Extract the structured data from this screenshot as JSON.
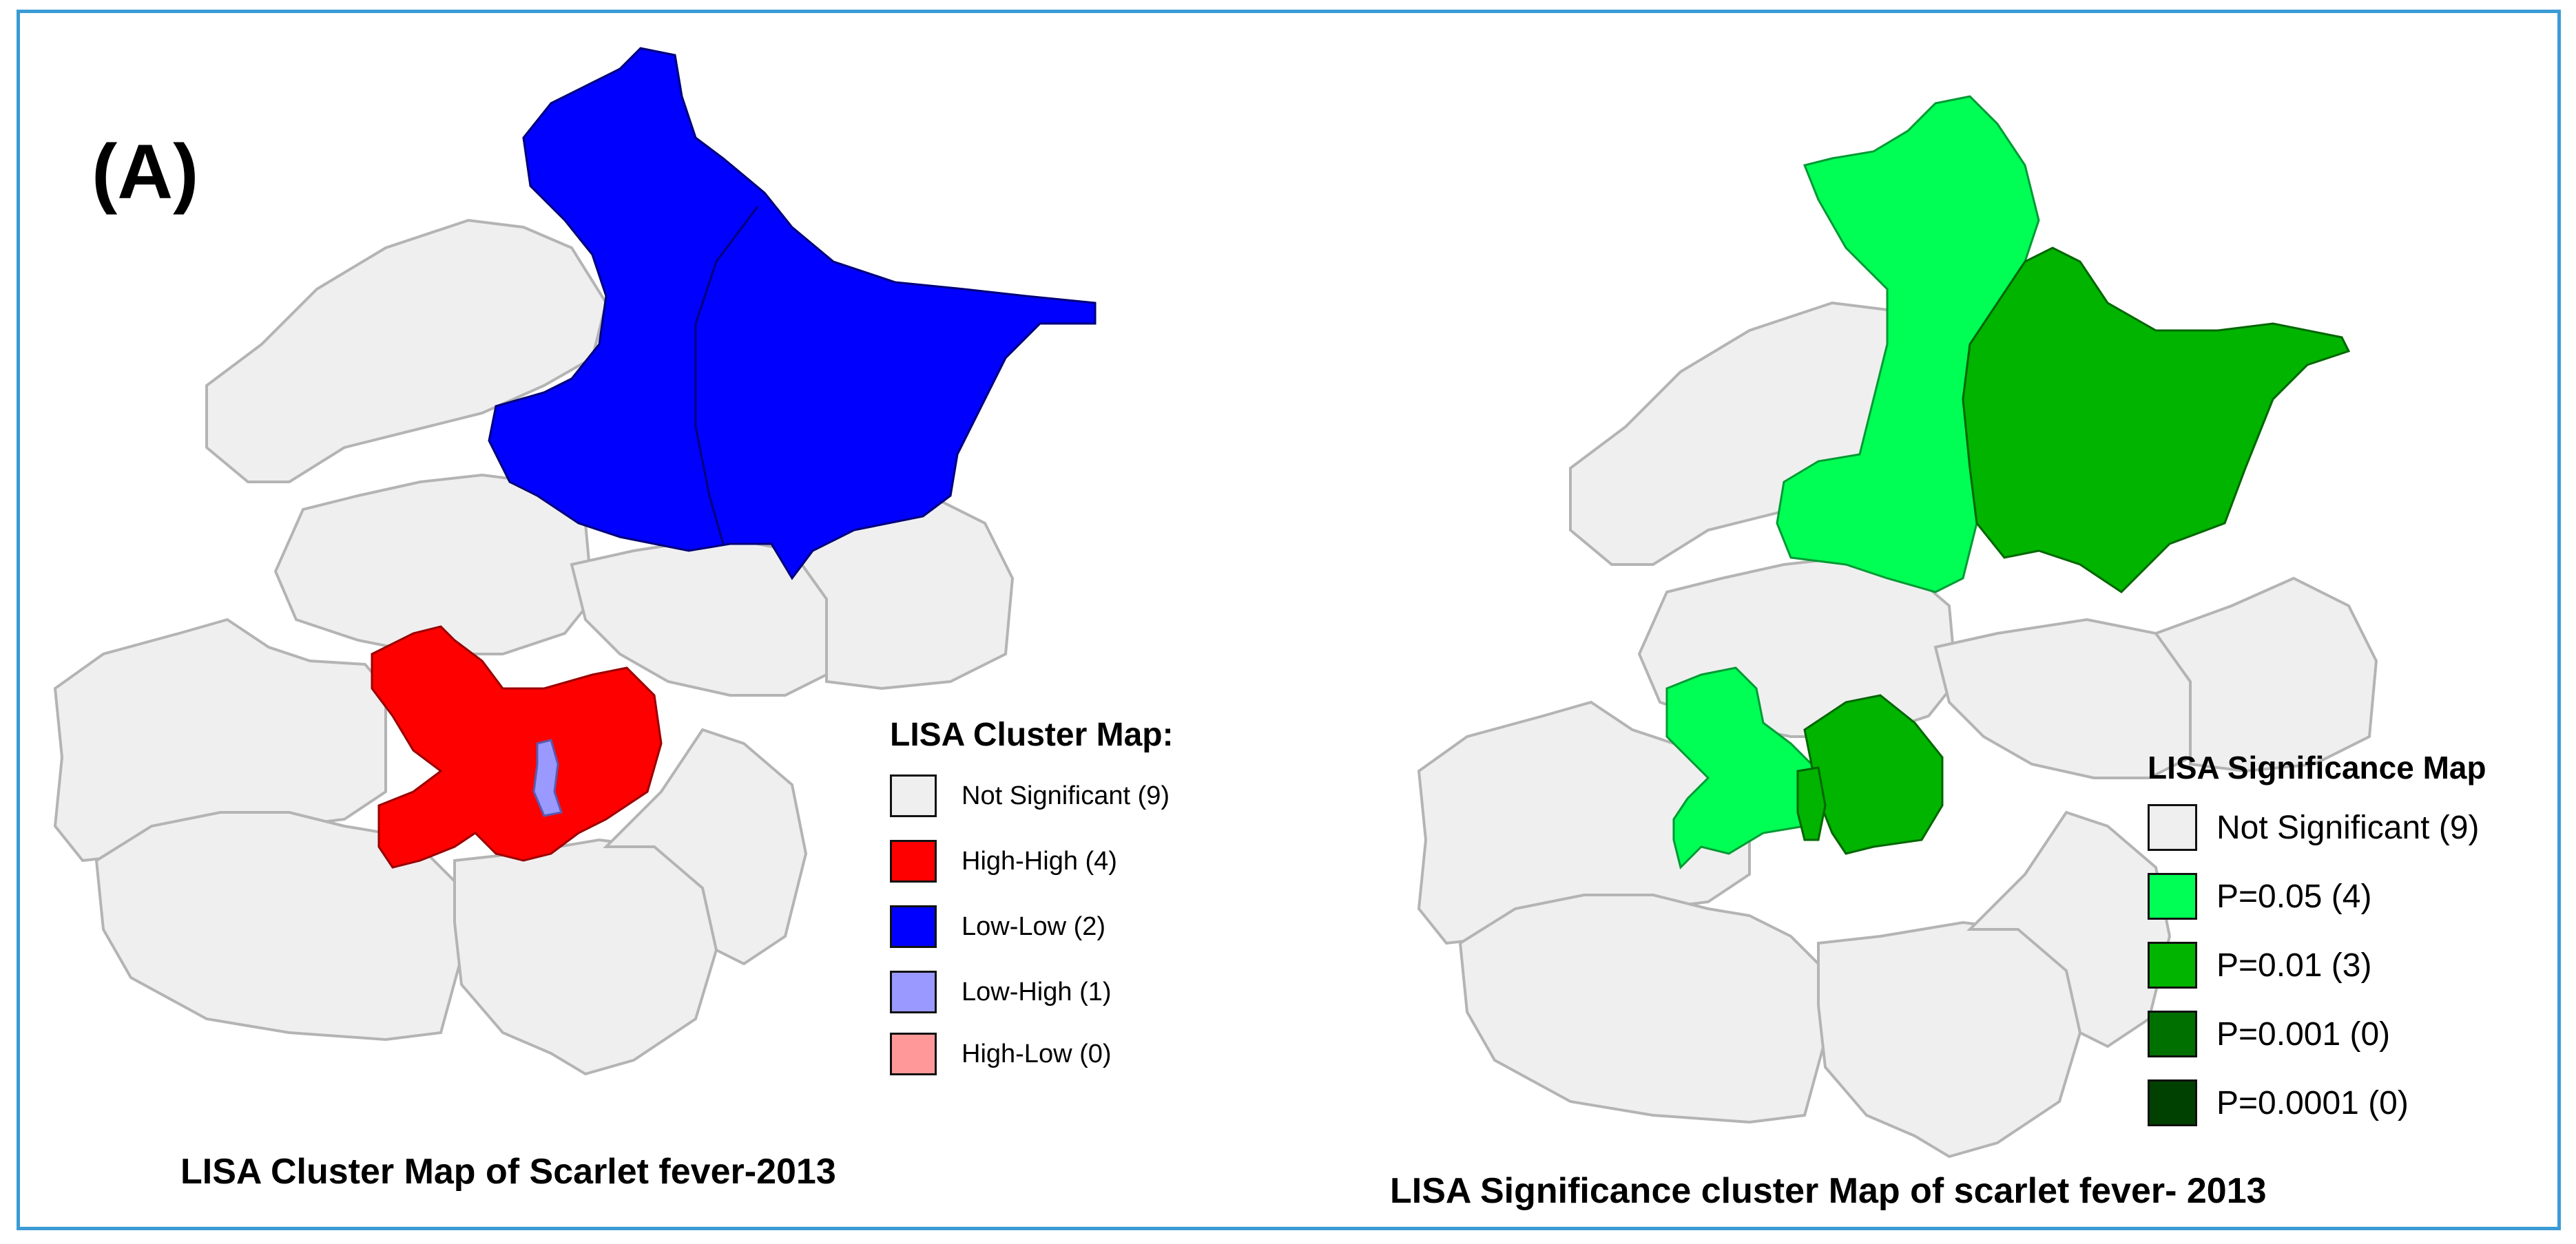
{
  "panel_label": "(A)",
  "left_map": {
    "caption": "LISA Cluster Map of Scarlet fever-2013",
    "legend_title": "LISA Cluster Map:",
    "legend": [
      {
        "label": "Not Significant (9)",
        "color": "#efefef"
      },
      {
        "label": "High-High (4)",
        "color": "#ff0000"
      },
      {
        "label": "Low-Low (2)",
        "color": "#0000ff"
      },
      {
        "label": "Low-High (1)",
        "color": "#9999ff"
      },
      {
        "label": "High-Low (0)",
        "color": "#ff9999"
      }
    ]
  },
  "right_map": {
    "caption": "LISA Significance cluster Map of scarlet fever- 2013",
    "legend_title": "LISA Significance Map",
    "legend": [
      {
        "label": "Not Significant (9)",
        "color": "#efefef"
      },
      {
        "label": "P=0.05 (4)",
        "color": "#00ff55"
      },
      {
        "label": "P=0.01 (3)",
        "color": "#00b400"
      },
      {
        "label": "P=0.001 (0)",
        "color": "#007000"
      },
      {
        "label": "P=0.0001 (0)",
        "color": "#004000"
      }
    ]
  },
  "colors": {
    "frame_border": "#3a9bd5",
    "district_fill": "#efefef",
    "district_stroke": "#b4b4b4"
  }
}
